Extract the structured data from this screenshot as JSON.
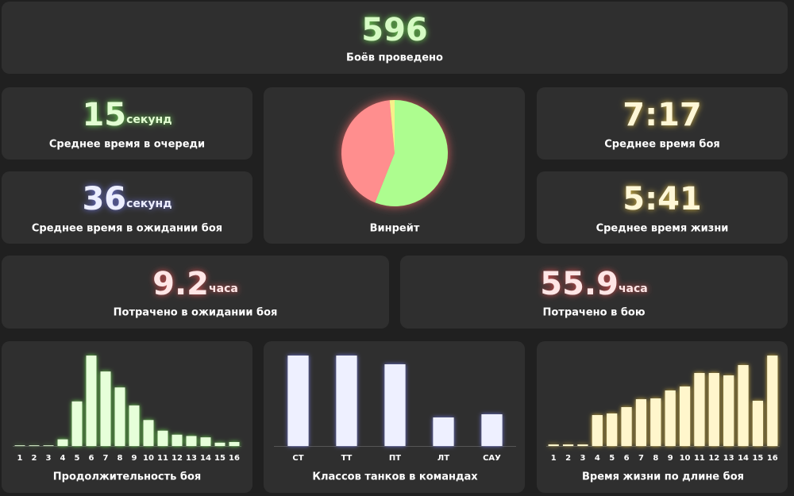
{
  "stats": [
    {
      "value": 596,
      "label": "Боёв проведено",
      "color": "#d6fbc4",
      "glow": "#7dff5a"
    },
    {
      "value": 15,
      "unit": "секунд",
      "label": "Среднее время в очереди",
      "color": "#e2fdd2",
      "glow": "#7dff5a"
    },
    {
      "value": 36,
      "unit": "секунд",
      "label": "Среднее время в ожидании боя",
      "color": "#eceeff",
      "glow": "#7f86ff"
    },
    {
      "value": "7:17",
      "label": "Среднее время боя",
      "color": "#fff7d6",
      "glow": "#ffd84a"
    },
    {
      "value": "5:41",
      "label": "Среднее время жизни",
      "color": "#fff7d6",
      "glow": "#ffd84a"
    },
    {
      "value": 9.2,
      "unit": "часа",
      "label": "Потрачено в ожидании боя",
      "color": "#ffe6e6",
      "glow": "#ff5a5a"
    },
    {
      "value": 55.9,
      "unit": "часа",
      "label": "Потрачено в бою",
      "color": "#ffe6e6",
      "glow": "#ff5a5a"
    }
  ],
  "chart_data": [
    {
      "type": "pie",
      "title": "Винрейт",
      "values": [
        56,
        42.5,
        1.5
      ],
      "colors": [
        "#adfd8f",
        "#ff8e8e",
        "#f7f08a"
      ]
    },
    {
      "type": "bar",
      "title": "Продолжительность боя",
      "categories": [
        "1",
        "2",
        "3",
        "4",
        "5",
        "6",
        "7",
        "8",
        "9",
        "10",
        "11",
        "12",
        "13",
        "14",
        "15",
        "16"
      ],
      "values": [
        1,
        1,
        1,
        10,
        67,
        136,
        112,
        88,
        61,
        39,
        23,
        17,
        15,
        13,
        5,
        6
      ],
      "color": "#e6ffd9",
      "glow": "#7dff5a"
    },
    {
      "type": "bar",
      "title": "Классов танков в командах",
      "categories": [
        "СТ",
        "ТТ",
        "ПТ",
        "ЛТ",
        "САУ"
      ],
      "values": [
        114,
        114,
        103,
        36,
        40
      ],
      "color": "#eef0ff",
      "glow": "#7f86ff"
    },
    {
      "type": "bar",
      "title": "Время жизни по длине боя",
      "categories": [
        "1",
        "2",
        "3",
        "4",
        "5",
        "6",
        "7",
        "8",
        "9",
        "10",
        "11",
        "12",
        "13",
        "14",
        "15",
        "16"
      ],
      "values": [
        2,
        2,
        2,
        39,
        41,
        49,
        59,
        60,
        70,
        75,
        92,
        92,
        89,
        102,
        57,
        114
      ],
      "color": "#fff6cc",
      "glow": "#ffd84a"
    }
  ]
}
